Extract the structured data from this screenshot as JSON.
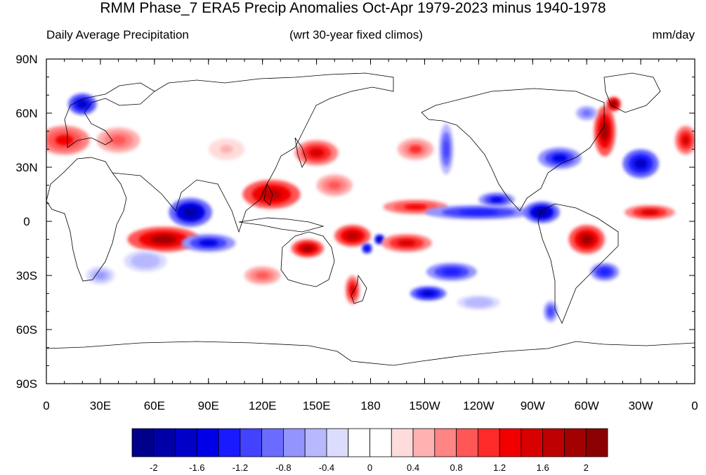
{
  "title": "RMM Phase_7 ERA5 Precip Anomalies Oct-Apr 1979-2023 minus 1940-1978",
  "subtitle_left": "Daily Average Precipitation",
  "subtitle_center": "(wrt 30-year fixed climos)",
  "subtitle_right": "mm/day",
  "lat_ticks": [
    "90N",
    "60N",
    "30N",
    "0",
    "30S",
    "60S",
    "90S"
  ],
  "lon_ticks": [
    "0",
    "30E",
    "60E",
    "90E",
    "120E",
    "150E",
    "180",
    "150W",
    "120W",
    "90W",
    "60W",
    "30W",
    "0"
  ],
  "colorbar": {
    "colors": [
      "#00008b",
      "#0000a8",
      "#0000c8",
      "#0000e6",
      "#1a1aff",
      "#4242ff",
      "#6b6bff",
      "#9494ff",
      "#b8b8ff",
      "#dcdcff",
      "#ffffff",
      "#ffffff",
      "#ffdcdc",
      "#ffb0b0",
      "#ff8484",
      "#ff5656",
      "#ff2a2a",
      "#f20000",
      "#d80000",
      "#bd0000",
      "#a30000",
      "#8b0000"
    ],
    "tick_labels": [
      "-2",
      "-1.6",
      "-1.2",
      "-0.8",
      "-0.4",
      "0",
      "0.4",
      "0.8",
      "1.2",
      "1.6",
      "2"
    ]
  },
  "anomalies": [
    {
      "lon": 20,
      "lat": 65,
      "val": -1.8,
      "rx": 8,
      "ry": 6
    },
    {
      "lon": 10,
      "lat": 45,
      "val": 1.2,
      "rx": 14,
      "ry": 8
    },
    {
      "lon": 40,
      "lat": 45,
      "val": 0.8,
      "rx": 12,
      "ry": 7
    },
    {
      "lon": 80,
      "lat": 5,
      "val": -2.0,
      "rx": 12,
      "ry": 8
    },
    {
      "lon": 65,
      "lat": -10,
      "val": 1.8,
      "rx": 20,
      "ry": 7
    },
    {
      "lon": 90,
      "lat": -12,
      "val": -1.6,
      "rx": 15,
      "ry": 5
    },
    {
      "lon": 55,
      "lat": -22,
      "val": -0.6,
      "rx": 12,
      "ry": 6
    },
    {
      "lon": 125,
      "lat": 15,
      "val": 1.6,
      "rx": 16,
      "ry": 8
    },
    {
      "lon": 150,
      "lat": 38,
      "val": 1.4,
      "rx": 12,
      "ry": 7
    },
    {
      "lon": 160,
      "lat": 20,
      "val": 0.8,
      "rx": 10,
      "ry": 6
    },
    {
      "lon": 145,
      "lat": -15,
      "val": 1.8,
      "rx": 9,
      "ry": 5
    },
    {
      "lon": 170,
      "lat": -8,
      "val": 1.6,
      "rx": 10,
      "ry": 6
    },
    {
      "lon": 178,
      "lat": -15,
      "val": -1.8,
      "rx": 3,
      "ry": 3
    },
    {
      "lon": 185,
      "lat": -10,
      "val": -2.0,
      "rx": 3,
      "ry": 3
    },
    {
      "lon": 170,
      "lat": -38,
      "val": 1.4,
      "rx": 4,
      "ry": 8
    },
    {
      "lon": 200,
      "lat": -12,
      "val": 1.4,
      "rx": 14,
      "ry": 5
    },
    {
      "lon": 205,
      "lat": 8,
      "val": 1.2,
      "rx": 18,
      "ry": 4
    },
    {
      "lon": 205,
      "lat": 40,
      "val": 1.0,
      "rx": 10,
      "ry": 6
    },
    {
      "lon": 222,
      "lat": 40,
      "val": -1.2,
      "rx": 4,
      "ry": 14
    },
    {
      "lon": 240,
      "lat": 5,
      "val": -1.4,
      "rx": 30,
      "ry": 4
    },
    {
      "lon": 275,
      "lat": 5,
      "val": -2.0,
      "rx": 10,
      "ry": 6
    },
    {
      "lon": 250,
      "lat": 12,
      "val": -1.6,
      "rx": 10,
      "ry": 4
    },
    {
      "lon": 225,
      "lat": -28,
      "val": -1.4,
      "rx": 14,
      "ry": 5
    },
    {
      "lon": 212,
      "lat": -40,
      "val": -1.8,
      "rx": 10,
      "ry": 4
    },
    {
      "lon": 300,
      "lat": -10,
      "val": 1.8,
      "rx": 10,
      "ry": 8
    },
    {
      "lon": 310,
      "lat": -28,
      "val": -1.4,
      "rx": 8,
      "ry": 5
    },
    {
      "lon": 335,
      "lat": 5,
      "val": 1.4,
      "rx": 14,
      "ry": 4
    },
    {
      "lon": 330,
      "lat": 32,
      "val": -1.8,
      "rx": 10,
      "ry": 8
    },
    {
      "lon": 285,
      "lat": 35,
      "val": -1.6,
      "rx": 12,
      "ry": 6
    },
    {
      "lon": 310,
      "lat": 50,
      "val": 1.8,
      "rx": 6,
      "ry": 14
    },
    {
      "lon": 315,
      "lat": 65,
      "val": 2.0,
      "rx": 4,
      "ry": 4
    },
    {
      "lon": 355,
      "lat": 45,
      "val": 1.4,
      "rx": 6,
      "ry": 8
    },
    {
      "lon": 300,
      "lat": 60,
      "val": -1.0,
      "rx": 6,
      "ry": 4
    },
    {
      "lon": 120,
      "lat": -30,
      "val": 0.8,
      "rx": 10,
      "ry": 5
    },
    {
      "lon": 30,
      "lat": -30,
      "val": -0.8,
      "rx": 8,
      "ry": 5
    },
    {
      "lon": 240,
      "lat": -45,
      "val": -0.6,
      "rx": 12,
      "ry": 4
    },
    {
      "lon": 100,
      "lat": 40,
      "val": 0.4,
      "rx": 10,
      "ry": 6
    },
    {
      "lon": 280,
      "lat": -50,
      "val": -1.2,
      "rx": 4,
      "ry": 6
    }
  ]
}
